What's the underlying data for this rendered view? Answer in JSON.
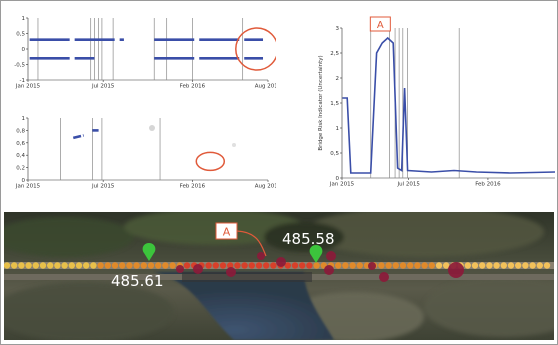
{
  "colors": {
    "series": "#3a4ea8",
    "annotation": "#e05a3a",
    "track_dot": "#e08a2a",
    "track_dot_alt": "#f2c15a",
    "hazard": "#8b1a3a",
    "marker": "#3cc43c"
  },
  "chart_data": [
    {
      "type": "scatter",
      "x_ticks": [
        "Jan 2015",
        "Jul 2015",
        "Feb 2016",
        "Aug 2016"
      ],
      "y_ticks": [
        "1",
        "0,5",
        "0",
        "-0,5",
        "-1"
      ],
      "ylim": [
        -1,
        1
      ],
      "xlim": [
        "2015-01-01",
        "2016-08-01"
      ],
      "series": [
        {
          "values": [
            {
              "x": "2015-01-05",
              "y": 0.3
            },
            {
              "x": "2015-08-20",
              "y": 0.3
            },
            {
              "x": "2015-11-01",
              "y": 0.3
            },
            {
              "x": "2016-07-20",
              "y": 0.3
            }
          ]
        },
        {
          "values": [
            {
              "x": "2015-01-05",
              "y": -0.3
            },
            {
              "x": "2015-06-10",
              "y": -0.3
            },
            {
              "x": "2015-11-01",
              "y": -0.3
            },
            {
              "x": "2016-07-20",
              "y": -0.3
            }
          ]
        }
      ],
      "vertical_lines": [
        "2015-01-25",
        "2015-06-01",
        "2015-06-10",
        "2015-06-20",
        "2015-06-28",
        "2015-07-25",
        "2015-11-01",
        "2015-12-01",
        "2016-02-01",
        "2016-06-01"
      ],
      "highlight_circle": {
        "x": "2016-07-05",
        "y": 0
      }
    },
    {
      "type": "scatter",
      "x_ticks": [
        "Jan 2015",
        "Jul 2015",
        "Feb 2016",
        "Aug 2016"
      ],
      "y_ticks": [
        "1",
        "0,8",
        "0,6",
        "0,4",
        "0,2",
        "0"
      ],
      "ylim": [
        0,
        1
      ],
      "xlim": [
        "2015-01-01",
        "2016-08-01"
      ],
      "series": [
        {
          "values": [
            {
              "x": "2015-04-20",
              "y": 0.68
            },
            {
              "x": "2015-05-15",
              "y": 0.72
            },
            {
              "x": "2015-06-05",
              "y": 0.8
            },
            {
              "x": "2015-06-20",
              "y": 0.8
            }
          ]
        }
      ],
      "vertical_lines": [
        "2015-03-20",
        "2015-06-05",
        "2015-06-28",
        "2015-11-15"
      ],
      "highlight_circle": {
        "x": "2016-03-15",
        "y": 0.3
      }
    },
    {
      "type": "line",
      "ylabel": "Bridge Risk Indicator (Uncertainty)",
      "y_ticks": [
        "3",
        "2,5",
        "2",
        "1,5",
        "1",
        "0,5",
        "0"
      ],
      "x_ticks": [
        "Jan 2015",
        "Jul 2015",
        "Feb 2016"
      ],
      "ylim": [
        0,
        3
      ],
      "xlim": [
        "2015-01-01",
        "2016-08-01"
      ],
      "series": [
        {
          "values": [
            {
              "x": "2015-01-02",
              "y": 1.6
            },
            {
              "x": "2015-01-15",
              "y": 1.6
            },
            {
              "x": "2015-01-25",
              "y": 0.1
            },
            {
              "x": "2015-03-20",
              "y": 0.1
            },
            {
              "x": "2015-04-05",
              "y": 2.5
            },
            {
              "x": "2015-04-20",
              "y": 2.7
            },
            {
              "x": "2015-05-05",
              "y": 2.8
            },
            {
              "x": "2015-05-20",
              "y": 2.7
            },
            {
              "x": "2015-06-01",
              "y": 0.2
            },
            {
              "x": "2015-06-12",
              "y": 0.15
            },
            {
              "x": "2015-06-20",
              "y": 1.8
            },
            {
              "x": "2015-06-28",
              "y": 0.15
            },
            {
              "x": "2015-09-01",
              "y": 0.12
            },
            {
              "x": "2015-11-01",
              "y": 0.15
            },
            {
              "x": "2016-01-01",
              "y": 0.12
            },
            {
              "x": "2016-04-01",
              "y": 0.1
            },
            {
              "x": "2016-08-01",
              "y": 0.12
            }
          ]
        }
      ],
      "vertical_lines": [
        "2015-03-20",
        "2015-05-10",
        "2015-05-25",
        "2015-06-05",
        "2015-06-15",
        "2015-06-28",
        "2015-11-15"
      ],
      "annotation": "A"
    }
  ],
  "map": {
    "label_a": "A",
    "marker_right_value": "485.58",
    "marker_left_value": "485.61"
  }
}
